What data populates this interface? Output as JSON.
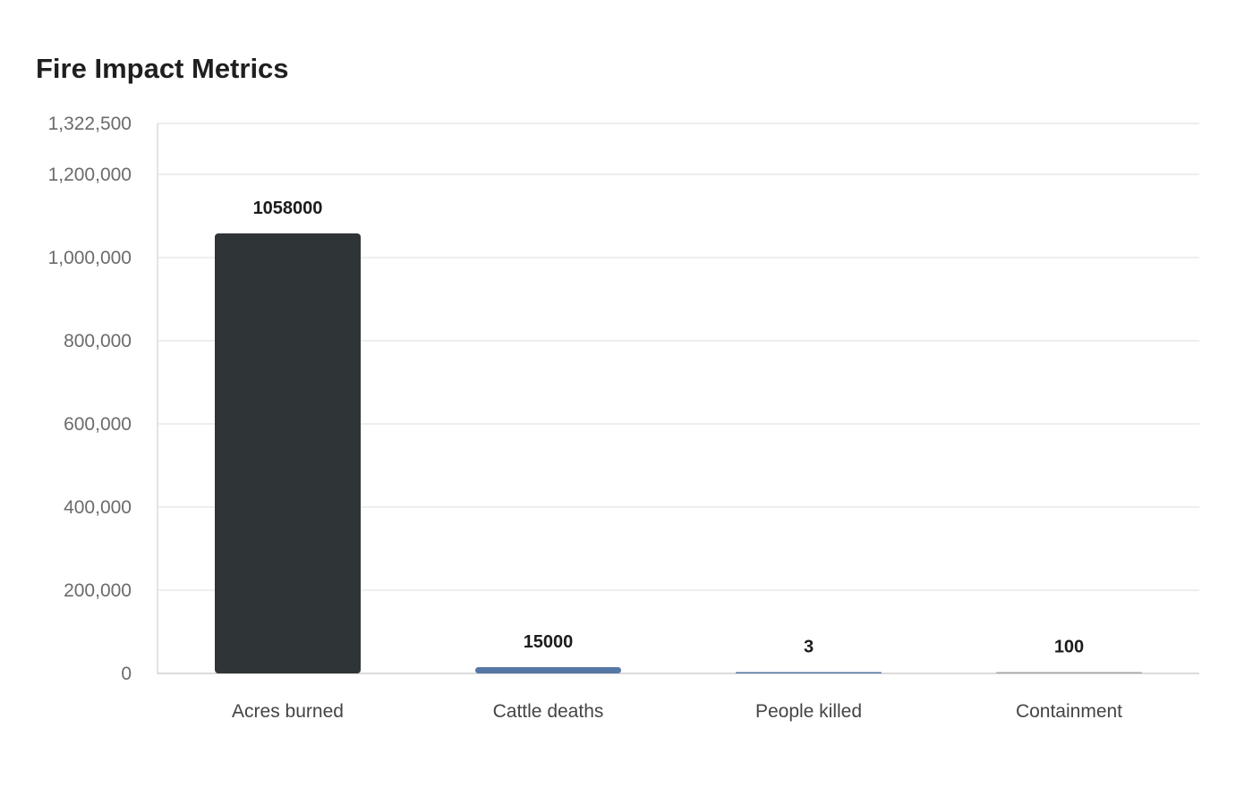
{
  "chart_data": {
    "type": "bar",
    "title": "Fire Impact Metrics",
    "categories": [
      "Acres burned",
      "Cattle deaths",
      "People killed",
      "Containment"
    ],
    "values": [
      1058000,
      15000,
      3,
      100
    ],
    "data_labels": [
      "1058000",
      "15000",
      "3",
      "100"
    ],
    "bar_colors": [
      "#2f3537",
      "#5577a3",
      "#5577a3",
      "#a6a6a6"
    ],
    "ylim": [
      0,
      1322500
    ],
    "yticks": [
      0,
      200000,
      400000,
      600000,
      800000,
      1000000,
      1200000,
      1322500
    ],
    "ytick_labels": [
      "0",
      "200,000",
      "400,000",
      "600,000",
      "800,000",
      "1,000,000",
      "1,200,000",
      "1,322,500"
    ],
    "xlabel": "",
    "ylabel": "",
    "grid": true,
    "legend": "none"
  }
}
